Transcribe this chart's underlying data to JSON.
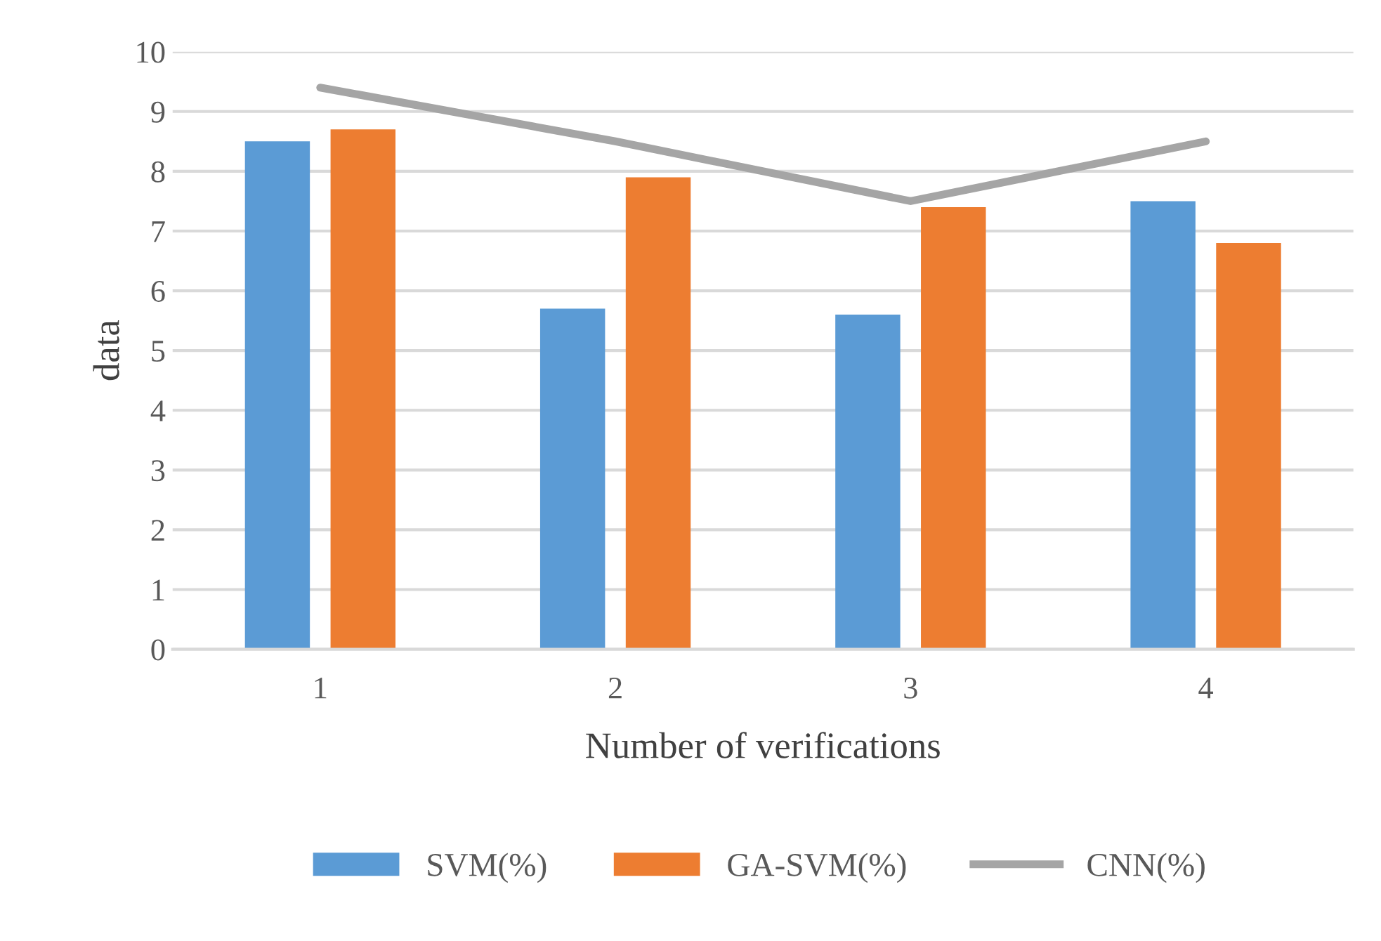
{
  "chart_data": {
    "type": "bar",
    "xlabel": "Number of verifications",
    "ylabel": "data",
    "categories": [
      "1",
      "2",
      "3",
      "4"
    ],
    "series": [
      {
        "name": "SVM(%)",
        "color": "#5b9bd5",
        "values": [
          8.5,
          5.7,
          5.6,
          7.5
        ]
      },
      {
        "name": "GA-SVM(%)",
        "color": "#ed7d31",
        "values": [
          8.7,
          7.9,
          7.4,
          6.8
        ]
      },
      {
        "name": "CNN(%)",
        "type": "line",
        "color": "#a5a5a5",
        "values": [
          9.4,
          8.5,
          7.5,
          8.5
        ]
      }
    ],
    "ylim": [
      0,
      10
    ],
    "yticks": [
      0,
      1,
      2,
      3,
      4,
      5,
      6,
      7,
      8,
      9,
      10
    ],
    "grid": "y",
    "legend": "bottom",
    "marker": "none"
  }
}
